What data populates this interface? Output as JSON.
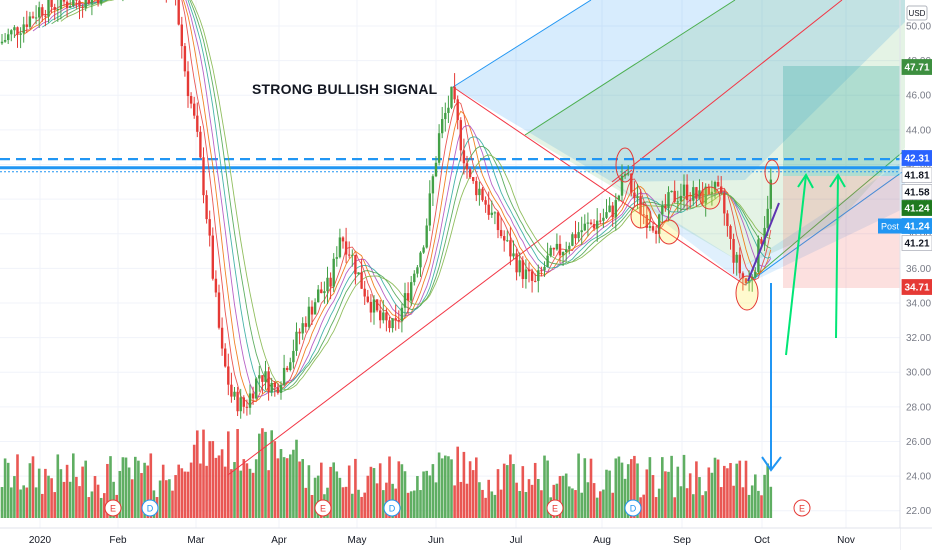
{
  "chart_data": {
    "type": "candlestick",
    "currency": "USD",
    "annotation": "STRONG BULLISH SIGNAL",
    "x_labels": [
      "2020",
      "Feb",
      "Mar",
      "Apr",
      "May",
      "Jun",
      "Jul",
      "Aug",
      "Sep",
      "Oct",
      "Nov"
    ],
    "y_ticks": [
      "50.00",
      "48.00",
      "46.00",
      "44.00",
      "42.00",
      "40.00",
      "38.00",
      "36.00",
      "34.00",
      "32.00",
      "30.00",
      "28.00",
      "26.00",
      "24.00",
      "22.00"
    ],
    "ylim": [
      21,
      51.5
    ],
    "price_tags": [
      {
        "text": "47.71",
        "value": 47.71,
        "bg": "#3d8f3f",
        "color": "#ffffff"
      },
      {
        "text": "42.31",
        "value": 42.31,
        "bg": "#2962ff",
        "color": "#ffffff"
      },
      {
        "text": "41.81",
        "value": 41.81,
        "bg": "#ffffff",
        "color": "#131722"
      },
      {
        "text": "41.58",
        "value": 41.58,
        "bg": "#ffffff",
        "color": "#131722"
      },
      {
        "text": "41.24",
        "value": 41.24,
        "bg": "#1f7a1f",
        "color": "#ffffff"
      },
      {
        "text": "41.24",
        "value": 41.24,
        "bg": "#2196f3",
        "color": "#ffffff",
        "prefix": "Post"
      },
      {
        "text": "41.21",
        "value": 41.21,
        "bg": "#ffffff",
        "color": "#131722"
      },
      {
        "text": "34.71",
        "value": 34.71,
        "bg": "#e53935",
        "color": "#ffffff"
      }
    ],
    "event_markers": [
      {
        "label": "E",
        "date": "Feb 1"
      },
      {
        "label": "D",
        "date": "Feb 13"
      },
      {
        "label": "E",
        "date": "Apr 30"
      },
      {
        "label": "D",
        "date": "May 10"
      },
      {
        "label": "E",
        "date": "Jul 30"
      },
      {
        "label": "D",
        "date": "Aug 12"
      },
      {
        "label": "E",
        "date": "Oct 29"
      }
    ],
    "horizontal_levels": [
      42.31,
      41.81,
      41.58
    ],
    "target_zone": {
      "top": 47.71,
      "entry": 41.58,
      "stop": 34.71
    },
    "colors": {
      "up": "#43a047",
      "down": "#e53935",
      "pitchfork_blue": "#2196f3",
      "pitchfork_green": "#4caf50",
      "pitchfork_red": "#f23645",
      "arrow_green": "#00e676",
      "arrow_blue": "#2196f3"
    }
  }
}
